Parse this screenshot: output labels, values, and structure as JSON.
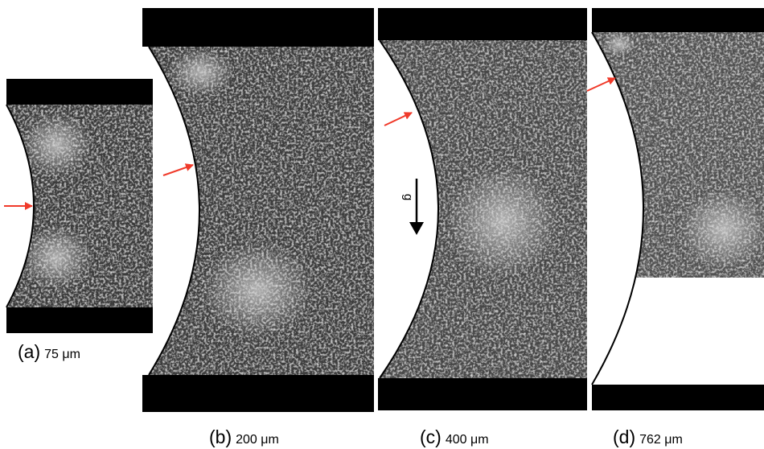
{
  "panels": [
    {
      "letter": "(a)",
      "size": "75 μm"
    },
    {
      "letter": "(b)",
      "size": "200 μm"
    },
    {
      "letter": "(c)",
      "size": "400 μm"
    },
    {
      "letter": "(d)",
      "size": "762 μm"
    }
  ],
  "gravity_label": "g"
}
